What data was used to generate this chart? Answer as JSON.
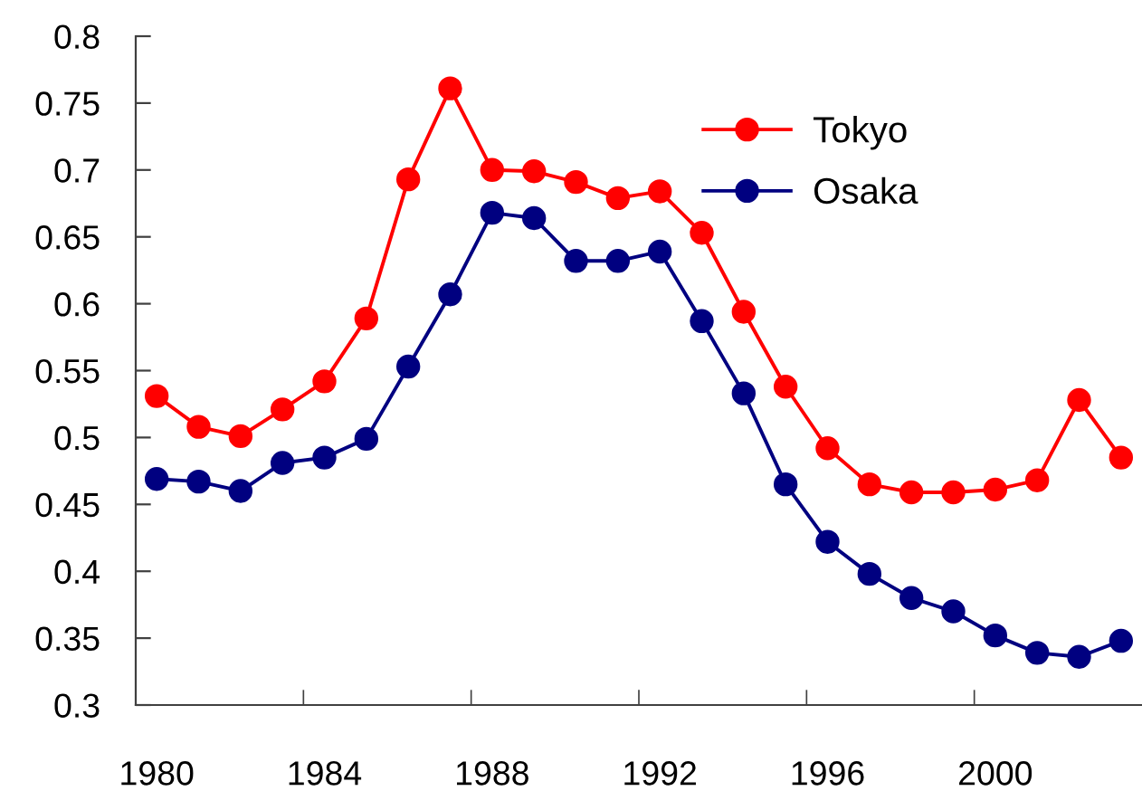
{
  "chart_data": {
    "type": "line",
    "categories": [
      "1980",
      null,
      null,
      null,
      "1984",
      null,
      null,
      null,
      "1988",
      null,
      null,
      null,
      "1992",
      null,
      null,
      null,
      "1996",
      null,
      null,
      null,
      "2000",
      null,
      null,
      null
    ],
    "series": [
      {
        "name": "Tokyo",
        "color": "#ff0000",
        "values": [
          0.531,
          0.508,
          0.501,
          0.521,
          0.542,
          0.589,
          0.693,
          0.761,
          0.7,
          0.699,
          0.691,
          0.679,
          0.684,
          0.653,
          0.594,
          0.538,
          0.492,
          0.465,
          0.459,
          0.459,
          0.461,
          0.468,
          0.528,
          0.485
        ]
      },
      {
        "name": "Osaka",
        "color": "#000080",
        "values": [
          0.469,
          0.467,
          0.46,
          0.481,
          0.485,
          0.499,
          0.553,
          0.607,
          0.668,
          0.664,
          0.632,
          0.632,
          0.639,
          0.587,
          0.533,
          0.465,
          0.422,
          0.398,
          0.38,
          0.37,
          0.352,
          0.339,
          0.336,
          0.348
        ]
      }
    ],
    "ylim": [
      0.3,
      0.8
    ],
    "yticks": [
      0.3,
      0.35,
      0.4,
      0.45,
      0.5,
      0.55,
      0.6,
      0.65,
      0.7,
      0.75,
      0.8
    ],
    "marker": "circle",
    "line_style": "solid",
    "legend": "top right",
    "grid": false
  }
}
